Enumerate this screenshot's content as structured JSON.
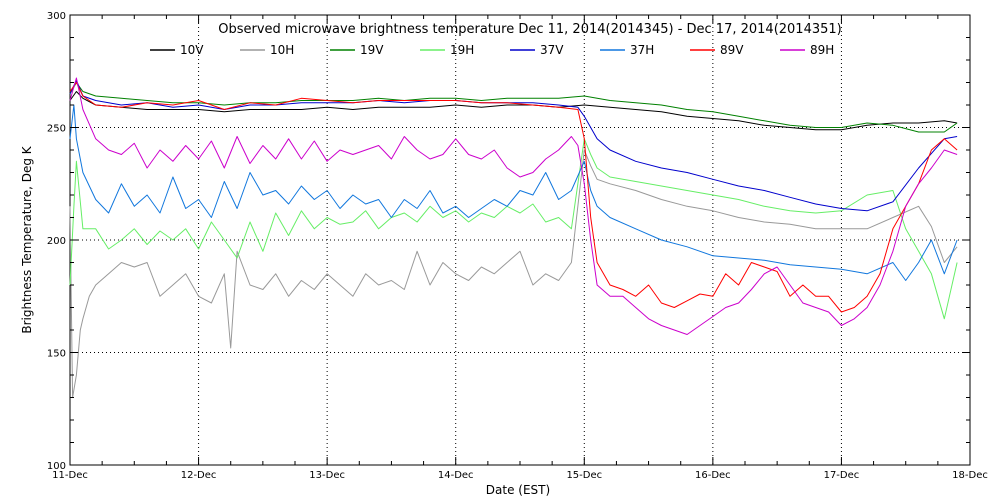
{
  "chart_data": {
    "type": "line",
    "title": "Observed microwave brightness temperature Dec 11, 2014(2014345) - Dec 17, 2014(2014351)",
    "xlabel": "Date (EST)",
    "ylabel": "Brightness Temperature, Deg K",
    "xlim": [
      0,
      7
    ],
    "ylim": [
      100,
      300
    ],
    "categories": [
      "11-Dec",
      "12-Dec",
      "13-Dec",
      "14-Dec",
      "15-Dec",
      "16-Dec",
      "17-Dec",
      "18-Dec"
    ],
    "yticks": [
      100,
      150,
      200,
      250,
      300
    ],
    "grid": true,
    "legend_position": "top",
    "series": [
      {
        "name": "10V",
        "color": "#000000",
        "x": [
          0.0,
          0.05,
          0.1,
          0.2,
          0.4,
          0.6,
          0.8,
          1.0,
          1.2,
          1.4,
          1.6,
          1.8,
          2.0,
          2.2,
          2.4,
          2.6,
          2.8,
          3.0,
          3.2,
          3.4,
          3.6,
          3.8,
          4.0,
          4.2,
          4.4,
          4.6,
          4.8,
          5.0,
          5.2,
          5.4,
          5.6,
          5.8,
          6.0,
          6.2,
          6.4,
          6.6,
          6.8,
          6.9
        ],
        "y": [
          262,
          266,
          263,
          260,
          259,
          258,
          258,
          258,
          257,
          258,
          258,
          258,
          259,
          258,
          259,
          259,
          259,
          260,
          259,
          260,
          260,
          259,
          260,
          259,
          258,
          257,
          255,
          254,
          253,
          251,
          250,
          249,
          249,
          251,
          252,
          252,
          253,
          252
        ]
      },
      {
        "name": "10H",
        "color": "#999999",
        "x": [
          0.0,
          0.02,
          0.05,
          0.08,
          0.1,
          0.15,
          0.2,
          0.3,
          0.4,
          0.5,
          0.6,
          0.7,
          0.8,
          0.9,
          1.0,
          1.1,
          1.2,
          1.25,
          1.3,
          1.4,
          1.5,
          1.6,
          1.7,
          1.8,
          1.9,
          2.0,
          2.1,
          2.2,
          2.3,
          2.4,
          2.5,
          2.6,
          2.7,
          2.8,
          2.9,
          3.0,
          3.1,
          3.2,
          3.3,
          3.4,
          3.5,
          3.6,
          3.7,
          3.8,
          3.9,
          4.0,
          4.05,
          4.1,
          4.2,
          4.4,
          4.6,
          4.8,
          5.0,
          5.2,
          5.4,
          5.6,
          5.8,
          6.0,
          6.2,
          6.4,
          6.6,
          6.7,
          6.8,
          6.9
        ],
        "y": [
          215,
          130,
          140,
          160,
          165,
          175,
          180,
          185,
          190,
          188,
          190,
          175,
          180,
          185,
          175,
          172,
          185,
          152,
          195,
          180,
          178,
          185,
          175,
          182,
          178,
          185,
          180,
          175,
          185,
          180,
          182,
          178,
          195,
          180,
          190,
          185,
          182,
          188,
          185,
          190,
          195,
          180,
          185,
          182,
          190,
          240,
          233,
          227,
          225,
          222,
          218,
          215,
          213,
          210,
          208,
          207,
          205,
          205,
          205,
          210,
          215,
          206,
          190,
          197
        ]
      },
      {
        "name": "19V",
        "color": "#008000",
        "x": [
          0.0,
          0.05,
          0.1,
          0.2,
          0.4,
          0.6,
          0.8,
          1.0,
          1.2,
          1.4,
          1.6,
          1.8,
          2.0,
          2.2,
          2.4,
          2.6,
          2.8,
          3.0,
          3.2,
          3.4,
          3.6,
          3.8,
          4.0,
          4.2,
          4.4,
          4.6,
          4.8,
          5.0,
          5.2,
          5.4,
          5.6,
          5.8,
          6.0,
          6.2,
          6.4,
          6.6,
          6.8,
          6.9
        ],
        "y": [
          265,
          270,
          266,
          264,
          263,
          262,
          261,
          261,
          260,
          261,
          261,
          262,
          262,
          262,
          263,
          262,
          263,
          263,
          262,
          263,
          263,
          263,
          264,
          262,
          261,
          260,
          258,
          257,
          255,
          253,
          251,
          250,
          250,
          252,
          251,
          248,
          248,
          252
        ]
      },
      {
        "name": "19H",
        "color": "#66ee66",
        "x": [
          0.0,
          0.03,
          0.05,
          0.1,
          0.2,
          0.3,
          0.4,
          0.5,
          0.6,
          0.7,
          0.8,
          0.9,
          1.0,
          1.1,
          1.2,
          1.3,
          1.4,
          1.5,
          1.6,
          1.7,
          1.8,
          1.9,
          2.0,
          2.1,
          2.2,
          2.3,
          2.4,
          2.5,
          2.6,
          2.7,
          2.8,
          2.9,
          3.0,
          3.1,
          3.2,
          3.3,
          3.4,
          3.5,
          3.6,
          3.7,
          3.8,
          3.9,
          4.0,
          4.05,
          4.1,
          4.2,
          4.4,
          4.6,
          4.8,
          5.0,
          5.2,
          5.4,
          5.6,
          5.8,
          6.0,
          6.2,
          6.4,
          6.5,
          6.6,
          6.7,
          6.8,
          6.9
        ],
        "y": [
          180,
          215,
          235,
          205,
          205,
          196,
          200,
          205,
          198,
          204,
          200,
          205,
          196,
          208,
          200,
          192,
          208,
          195,
          212,
          202,
          213,
          205,
          210,
          207,
          208,
          213,
          205,
          210,
          212,
          208,
          215,
          210,
          213,
          208,
          212,
          210,
          215,
          212,
          216,
          208,
          210,
          205,
          245,
          238,
          232,
          228,
          226,
          224,
          222,
          220,
          218,
          215,
          213,
          212,
          213,
          220,
          222,
          205,
          195,
          185,
          165,
          190
        ]
      },
      {
        "name": "37V",
        "color": "#0000cc",
        "x": [
          0.0,
          0.05,
          0.1,
          0.2,
          0.4,
          0.6,
          0.8,
          1.0,
          1.2,
          1.4,
          1.6,
          1.8,
          2.0,
          2.2,
          2.4,
          2.6,
          2.8,
          3.0,
          3.2,
          3.4,
          3.6,
          3.8,
          3.95,
          4.0,
          4.05,
          4.1,
          4.2,
          4.4,
          4.6,
          4.8,
          5.0,
          5.2,
          5.4,
          5.6,
          5.8,
          6.0,
          6.2,
          6.4,
          6.6,
          6.8,
          6.9
        ],
        "y": [
          265,
          271,
          264,
          262,
          260,
          261,
          259,
          260,
          258,
          260,
          260,
          261,
          261,
          261,
          262,
          261,
          262,
          262,
          261,
          261,
          261,
          260,
          259,
          255,
          250,
          245,
          240,
          235,
          232,
          230,
          227,
          224,
          222,
          219,
          216,
          214,
          213,
          217,
          232,
          245,
          246
        ]
      },
      {
        "name": "37H",
        "color": "#1177dd",
        "x": [
          0.0,
          0.03,
          0.05,
          0.1,
          0.2,
          0.3,
          0.4,
          0.5,
          0.6,
          0.7,
          0.8,
          0.9,
          1.0,
          1.1,
          1.2,
          1.3,
          1.4,
          1.5,
          1.6,
          1.7,
          1.8,
          1.9,
          2.0,
          2.1,
          2.2,
          2.3,
          2.4,
          2.5,
          2.6,
          2.7,
          2.8,
          2.9,
          3.0,
          3.1,
          3.2,
          3.3,
          3.4,
          3.5,
          3.6,
          3.7,
          3.8,
          3.9,
          4.0,
          4.05,
          4.1,
          4.2,
          4.4,
          4.6,
          4.8,
          5.0,
          5.2,
          5.4,
          5.6,
          5.8,
          6.0,
          6.2,
          6.4,
          6.5,
          6.6,
          6.7,
          6.8,
          6.9
        ],
        "y": [
          245,
          260,
          245,
          230,
          218,
          212,
          225,
          215,
          220,
          212,
          228,
          214,
          218,
          210,
          226,
          214,
          230,
          220,
          222,
          216,
          224,
          218,
          222,
          214,
          220,
          216,
          218,
          210,
          218,
          214,
          222,
          212,
          215,
          210,
          214,
          218,
          215,
          222,
          220,
          230,
          218,
          222,
          235,
          222,
          215,
          210,
          205,
          200,
          197,
          193,
          192,
          191,
          189,
          188,
          187,
          185,
          190,
          182,
          190,
          200,
          185,
          200
        ]
      },
      {
        "name": "89V",
        "color": "#ff0000",
        "x": [
          0.0,
          0.05,
          0.1,
          0.2,
          0.4,
          0.6,
          0.8,
          1.0,
          1.2,
          1.4,
          1.6,
          1.8,
          2.0,
          2.2,
          2.4,
          2.6,
          2.8,
          3.0,
          3.2,
          3.4,
          3.6,
          3.8,
          3.95,
          4.0,
          4.05,
          4.1,
          4.2,
          4.3,
          4.4,
          4.5,
          4.6,
          4.7,
          4.8,
          4.9,
          5.0,
          5.1,
          5.2,
          5.3,
          5.4,
          5.5,
          5.6,
          5.7,
          5.8,
          5.9,
          6.0,
          6.1,
          6.2,
          6.3,
          6.4,
          6.5,
          6.6,
          6.7,
          6.8,
          6.9
        ],
        "y": [
          266,
          270,
          264,
          260,
          259,
          261,
          260,
          262,
          258,
          261,
          260,
          263,
          262,
          261,
          262,
          262,
          262,
          262,
          261,
          261,
          260,
          259,
          258,
          245,
          210,
          190,
          180,
          178,
          175,
          180,
          172,
          170,
          173,
          176,
          175,
          185,
          180,
          190,
          188,
          186,
          175,
          180,
          175,
          175,
          168,
          170,
          175,
          185,
          205,
          215,
          225,
          240,
          245,
          240
        ]
      },
      {
        "name": "89H",
        "color": "#cc00cc",
        "x": [
          0.0,
          0.05,
          0.1,
          0.2,
          0.3,
          0.4,
          0.5,
          0.6,
          0.7,
          0.8,
          0.9,
          1.0,
          1.1,
          1.2,
          1.3,
          1.4,
          1.5,
          1.6,
          1.7,
          1.8,
          1.9,
          2.0,
          2.1,
          2.2,
          2.3,
          2.4,
          2.5,
          2.6,
          2.7,
          2.8,
          2.9,
          3.0,
          3.1,
          3.2,
          3.3,
          3.4,
          3.5,
          3.6,
          3.7,
          3.8,
          3.9,
          3.95,
          4.0,
          4.05,
          4.1,
          4.2,
          4.3,
          4.4,
          4.5,
          4.6,
          4.7,
          4.8,
          4.9,
          5.0,
          5.1,
          5.2,
          5.3,
          5.4,
          5.5,
          5.6,
          5.7,
          5.8,
          5.9,
          6.0,
          6.1,
          6.2,
          6.3,
          6.4,
          6.5,
          6.6,
          6.7,
          6.8,
          6.9
        ],
        "y": [
          262,
          272,
          258,
          245,
          240,
          238,
          243,
          232,
          240,
          235,
          242,
          236,
          244,
          232,
          246,
          234,
          242,
          236,
          245,
          236,
          244,
          235,
          240,
          238,
          240,
          242,
          236,
          246,
          240,
          236,
          238,
          245,
          238,
          236,
          240,
          232,
          228,
          230,
          236,
          240,
          246,
          242,
          225,
          200,
          180,
          175,
          175,
          170,
          165,
          162,
          160,
          158,
          162,
          166,
          170,
          172,
          178,
          185,
          188,
          180,
          172,
          170,
          168,
          162,
          165,
          170,
          180,
          195,
          215,
          225,
          232,
          240,
          238
        ]
      }
    ]
  }
}
